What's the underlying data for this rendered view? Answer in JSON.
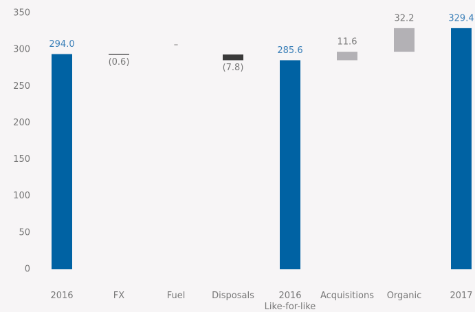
{
  "chart_data": {
    "type": "waterfall",
    "categories": [
      "2016",
      "FX",
      "Fuel",
      "Disposals",
      "2016\nLike-for-like",
      "Acquisitions",
      "Organic",
      "2017"
    ],
    "values": [
      294.0,
      -0.6,
      0,
      -7.8,
      285.6,
      11.6,
      32.2,
      329.4
    ],
    "value_labels": [
      "294.0",
      "(0.6)",
      "–",
      "(7.8)",
      "285.6",
      "11.6",
      "32.2",
      "329.4"
    ],
    "measure": [
      "total",
      "relative",
      "relative",
      "relative",
      "total",
      "relative",
      "relative",
      "total"
    ],
    "colors": [
      "#0062a3",
      "#3a3a3a",
      "#3a3a3a",
      "#3a3a3a",
      "#0062a3",
      "#b3b1b5",
      "#b3b1b5",
      "#0062a3"
    ],
    "ylim": [
      0,
      350
    ],
    "yticks": [
      0,
      50,
      100,
      150,
      200,
      250,
      300,
      350
    ],
    "grid": false
  }
}
